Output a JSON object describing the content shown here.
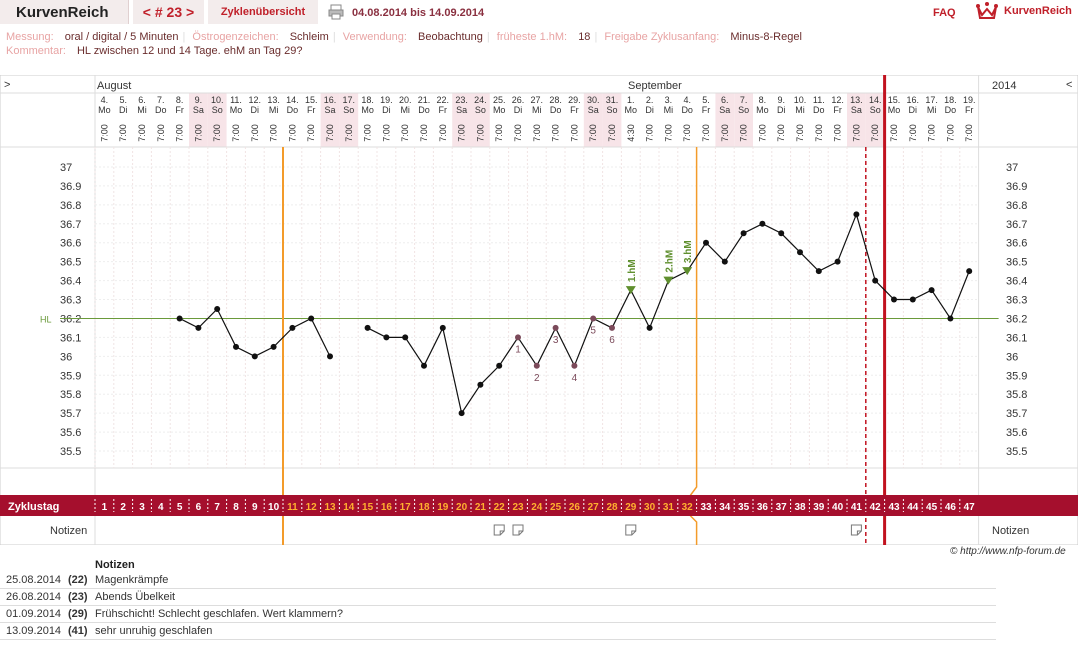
{
  "header": {
    "logo": "KurvenReich",
    "cycle_nav": "< # 23 >",
    "overview_link": "Zyklenübersicht",
    "date_range": "04.08.2014 bis 14.09.2014",
    "faq": "FAQ",
    "brand": "KurvenReich"
  },
  "meta": {
    "messung_label": "Messung:",
    "messung": "oral / digital / 5 Minuten",
    "oestrogen_label": "Östrogenzeichen:",
    "oestrogen": "Schleim",
    "verwendung_label": "Verwendung:",
    "verwendung": "Beobachtung",
    "fruehe_label": "früheste 1.hM:",
    "fruehe": "18",
    "freigabe_label": "Freigabe Zyklusanfang:",
    "freigabe": "Minus-8-Regel",
    "kommentar_label": "Kommentar:",
    "kommentar": "HL zwischen 12 und 14 Tage. ehM an Tag 29?"
  },
  "chart_data": {
    "type": "line",
    "months": {
      "left": "August",
      "mid": "September",
      "year": "2014"
    },
    "nav": {
      "left": ">",
      "right": "<"
    },
    "dates": [
      "4.",
      "5.",
      "6.",
      "7.",
      "8.",
      "9.",
      "10.",
      "11.",
      "12.",
      "13.",
      "14.",
      "15.",
      "16.",
      "17.",
      "18.",
      "19.",
      "20.",
      "21.",
      "22.",
      "23.",
      "24.",
      "25.",
      "26.",
      "27.",
      "28.",
      "29.",
      "30.",
      "31.",
      "1.",
      "2.",
      "3.",
      "4.",
      "5.",
      "6.",
      "7.",
      "8.",
      "9.",
      "10.",
      "11.",
      "12.",
      "13.",
      "14.",
      "15.",
      "16.",
      "17.",
      "18.",
      "19."
    ],
    "weekdays": [
      "Mo",
      "Di",
      "Mi",
      "Do",
      "Fr",
      "Sa",
      "So",
      "Mo",
      "Di",
      "Mi",
      "Do",
      "Fr",
      "Sa",
      "So",
      "Mo",
      "Di",
      "Mi",
      "Do",
      "Fr",
      "Sa",
      "So",
      "Mo",
      "Di",
      "Mi",
      "Do",
      "Fr",
      "Sa",
      "So",
      "Mo",
      "Di",
      "Mi",
      "Do",
      "Fr",
      "Sa",
      "So",
      "Mo",
      "Di",
      "Mi",
      "Do",
      "Fr",
      "Sa",
      "So",
      "Mo",
      "Di",
      "Mi",
      "Do",
      "Fr"
    ],
    "times": [
      "7:00",
      "7:00",
      "7:00",
      "7:00",
      "7:00",
      "7:00",
      "7:00",
      "7:00",
      "7:00",
      "7:00",
      "7:00",
      "7:00",
      "7:00",
      "7:00",
      "7:00",
      "7:00",
      "7:00",
      "7:00",
      "7:00",
      "7:00",
      "7:00",
      "7:00",
      "7:00",
      "7:00",
      "7:00",
      "7:00",
      "7:00",
      "7:00",
      "4:30",
      "7:00",
      "7:00",
      "7:00",
      "7:00",
      "7:00",
      "7:00",
      "7:00",
      "7:00",
      "7:00",
      "7:00",
      "7:00",
      "7:00",
      "7:00",
      "7:00",
      "7:00",
      "7:00",
      "7:00",
      "7:00"
    ],
    "cycle_days": [
      "1",
      "2",
      "3",
      "4",
      "5",
      "6",
      "7",
      "8",
      "9",
      "10",
      "11",
      "12",
      "13",
      "14",
      "15",
      "16",
      "17",
      "18",
      "19",
      "20",
      "21",
      "22",
      "23",
      "24",
      "25",
      "26",
      "27",
      "28",
      "29",
      "30",
      "31",
      "32",
      "33",
      "34",
      "35",
      "36",
      "37",
      "38",
      "39",
      "40",
      "41",
      "42",
      "43",
      "44",
      "45",
      "46",
      "47"
    ],
    "row_label": "Zyklustag",
    "notes_label": "Notizen",
    "y_ticks": [
      "37",
      "36.9",
      "36.8",
      "36.7",
      "36.6",
      "36.5",
      "36.4",
      "36.3",
      "36.2",
      "36.1",
      "36",
      "35.9",
      "35.8",
      "35.7",
      "35.6",
      "35.5"
    ],
    "ylim": [
      35.5,
      37
    ],
    "hl_label": "HL",
    "hl_value": 36.2,
    "temperatures": [
      null,
      null,
      null,
      null,
      36.2,
      36.15,
      36.25,
      36.05,
      36.0,
      36.05,
      36.15,
      36.2,
      36.0,
      null,
      36.15,
      36.1,
      36.1,
      35.95,
      36.15,
      35.7,
      35.85,
      35.95,
      36.1,
      35.95,
      36.15,
      35.95,
      36.2,
      36.15,
      36.35,
      36.15,
      36.4,
      36.45,
      36.6,
      36.5,
      36.65,
      36.7,
      36.65,
      36.55,
      36.45,
      36.5,
      36.75,
      36.4,
      36.3,
      36.3,
      36.35,
      36.2,
      36.45
    ],
    "low_markers": [
      {
        "day": 23,
        "label": "1"
      },
      {
        "day": 24,
        "label": "2"
      },
      {
        "day": 25,
        "label": "3"
      },
      {
        "day": 26,
        "label": "4"
      },
      {
        "day": 27,
        "label": "5"
      },
      {
        "day": 28,
        "label": "6"
      }
    ],
    "hm_markers": [
      {
        "day": 29,
        "label": "1.hM"
      },
      {
        "day": 31,
        "label": "2.hM"
      },
      {
        "day": 32,
        "label": "3.hM"
      }
    ],
    "weekend_days": [
      6,
      7,
      13,
      14,
      20,
      21,
      27,
      28,
      34,
      35,
      41,
      42
    ],
    "orange_days": [
      11,
      12,
      13,
      14,
      15,
      16,
      17,
      18,
      19,
      20,
      21,
      22,
      23,
      24,
      25,
      26,
      27,
      28,
      29,
      30,
      31,
      32
    ],
    "note_days": [
      22,
      23,
      29,
      41
    ],
    "lines": {
      "orange_left_day": 11,
      "orange_right_day": 33,
      "red_dashed_day": 42,
      "red_solid_day": 43
    },
    "colors": {
      "hl": "#6a9a3a",
      "orange": "#f39b2a",
      "red": "#c1121f",
      "band": "#a50f2d",
      "weekend": "#f7e4e8",
      "low_marker": "#7b4a5a",
      "hm": "#5f8f2e"
    }
  },
  "footer": {
    "credit": "© http://www.nfp-forum.de",
    "notes_title": "Notizen",
    "notes": [
      {
        "date": "25.08.2014",
        "day": "(22)",
        "text": "Magenkrämpfe"
      },
      {
        "date": "26.08.2014",
        "day": "(23)",
        "text": "Abends Übelkeit"
      },
      {
        "date": "01.09.2014",
        "day": "(29)",
        "text": "Frühschicht! Schlecht geschlafen. Wert klammern?"
      },
      {
        "date": "13.09.2014",
        "day": "(41)",
        "text": "sehr unruhig geschlafen"
      }
    ]
  }
}
